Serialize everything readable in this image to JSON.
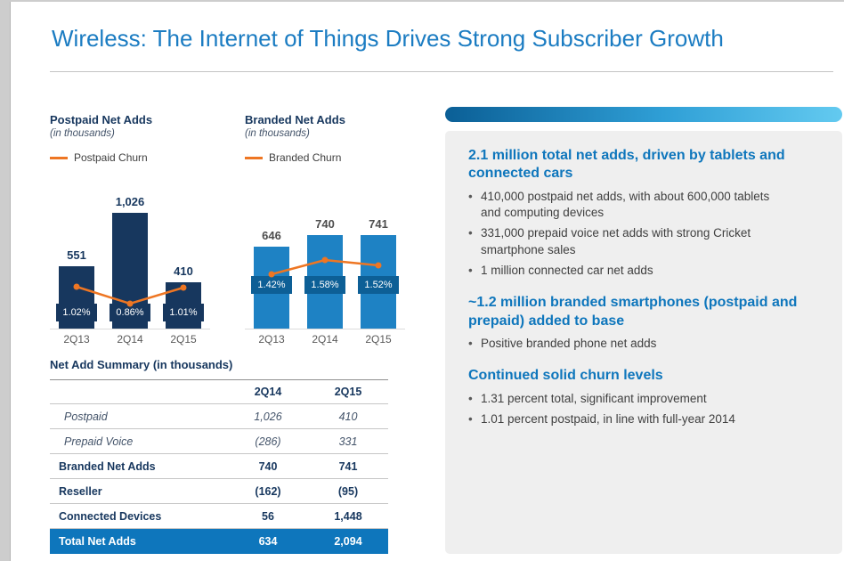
{
  "slide": {
    "title": "Wireless: The Internet of Things Drives Strong Subscriber Growth"
  },
  "chart_data": [
    {
      "type": "bar",
      "title": "Postpaid Net Adds",
      "subtitle": "(in thousands)",
      "categories": [
        "2Q13",
        "2Q14",
        "2Q15"
      ],
      "series": [
        {
          "name": "Postpaid Net Adds",
          "type": "bar",
          "values": [
            551,
            1026,
            410
          ],
          "labels": [
            "551",
            "1,026",
            "410"
          ]
        },
        {
          "name": "Postpaid Churn",
          "type": "line",
          "values": [
            1.02,
            0.86,
            1.01
          ],
          "labels": [
            "1.02%",
            "0.86%",
            "1.01%"
          ]
        }
      ],
      "ylim": [
        0,
        1100
      ],
      "grid": false,
      "legend_position": "top-left"
    },
    {
      "type": "bar",
      "title": "Branded Net Adds",
      "subtitle": "(in thousands)",
      "categories": [
        "2Q13",
        "2Q14",
        "2Q15"
      ],
      "series": [
        {
          "name": "Branded Net Adds",
          "type": "bar",
          "values": [
            646,
            740,
            741
          ],
          "labels": [
            "646",
            "740",
            "741"
          ]
        },
        {
          "name": "Branded Churn",
          "type": "line",
          "values": [
            1.42,
            1.58,
            1.52
          ],
          "labels": [
            "1.42%",
            "1.58%",
            "1.52%"
          ]
        }
      ],
      "ylim": [
        0,
        1100
      ],
      "grid": false,
      "legend_position": "top-left"
    },
    {
      "type": "table",
      "title": "Net Add Summary (in thousands)",
      "columns": [
        "",
        "2Q14",
        "2Q15"
      ],
      "rows": [
        {
          "label": "Postpaid",
          "values": [
            "1,026",
            "410"
          ],
          "style": "italic"
        },
        {
          "label": "Prepaid Voice",
          "values": [
            "(286)",
            "331"
          ],
          "style": "italic"
        },
        {
          "label": "Branded Net Adds",
          "values": [
            "740",
            "741"
          ],
          "style": "bold"
        },
        {
          "label": "Reseller",
          "values": [
            "(162)",
            "(95)"
          ],
          "style": "bold"
        },
        {
          "label": "Connected Devices",
          "values": [
            "56",
            "1,448"
          ],
          "style": "bold"
        },
        {
          "label": "Total Net Adds",
          "values": [
            "634",
            "2,094"
          ],
          "style": "total"
        }
      ]
    }
  ],
  "panel": {
    "sections": [
      {
        "heading": "2.1 million total net adds, driven by tablets and connected cars",
        "bullets": [
          "410,000 postpaid net adds, with about 600,000 tablets and computing devices",
          "331,000 prepaid voice net adds with strong Cricket smartphone sales",
          "1 million connected car net adds"
        ]
      },
      {
        "heading": "~1.2 million branded smartphones (postpaid and prepaid) added to base",
        "bullets": [
          "Positive branded phone net adds"
        ]
      },
      {
        "heading": "Continued solid churn levels",
        "bullets": [
          "1.31 percent total, significant improvement",
          "1.01 percent postpaid, in line with full-year 2014"
        ]
      }
    ]
  },
  "colors": {
    "title_blue": "#1b7cc2",
    "navy": "#17375e",
    "bar_postpaid": "#17375e",
    "bar_branded": "#1e82c4",
    "box_branded": "#0d5f96",
    "churn_orange": "#ee7623",
    "table_total_bg": "#0e76bc",
    "panel_heading_blue": "#0e76bc",
    "panel_bg": "#efefef",
    "panel_bar_start": "#0b5f96",
    "panel_bar_end": "#63caf0"
  }
}
